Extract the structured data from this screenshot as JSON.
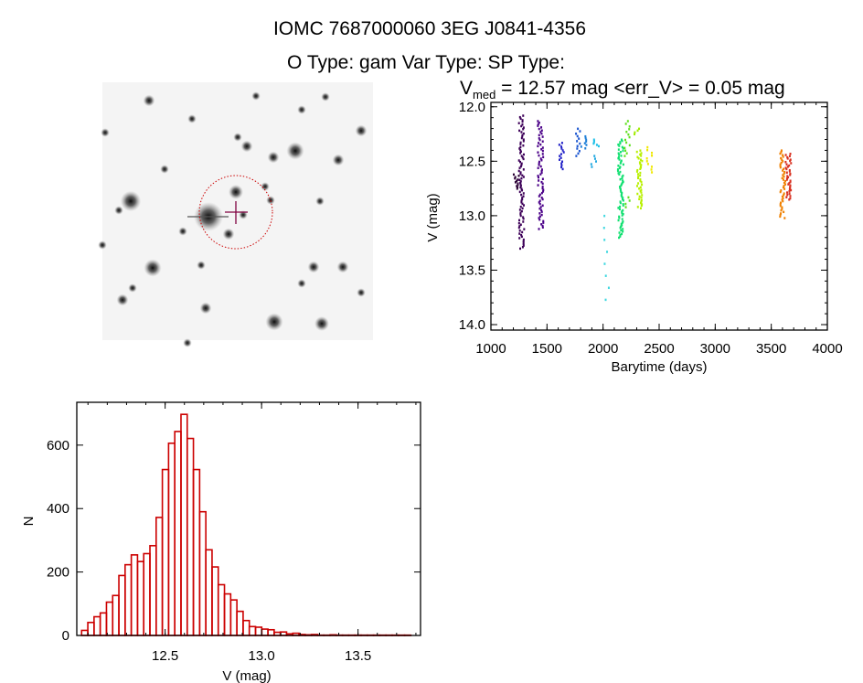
{
  "header": {
    "title_line1": "IOMC 7687000060    3EG J0841-4356",
    "title_line2": "O Type: gam  Var Type:   SP Type:"
  },
  "finder_image": {
    "label": "sky image cutout with source marker",
    "marker_color": "#800040",
    "circle_color": "#cc0000"
  },
  "chart_data": [
    {
      "type": "scatter",
      "title_prefix": "V",
      "title_subscript": "med",
      "title_rest": " = 12.57 mag <err_V> = 0.05 mag",
      "xlabel": "Barytime (days)",
      "ylabel": "V (mag)",
      "xlim": [
        1000,
        4000
      ],
      "ylim": [
        14.05,
        11.96
      ],
      "y_inverted": true,
      "xticks": [
        "1000",
        "1500",
        "2000",
        "2500",
        "3000",
        "3500",
        "4000"
      ],
      "yticks": [
        "12.0",
        "12.5",
        "13.0",
        "13.5",
        "14.0"
      ],
      "clusters": [
        {
          "x": 1228,
          "y_min": 12.62,
          "y_max": 12.75,
          "n": 12,
          "color": "#2a0035"
        },
        {
          "x": 1272,
          "y_min": 12.08,
          "y_max": 13.3,
          "n": 90,
          "color": "#3d0058"
        },
        {
          "x": 1443,
          "y_min": 12.13,
          "y_max": 13.12,
          "n": 70,
          "color": "#4a0088"
        },
        {
          "x": 1628,
          "y_min": 12.33,
          "y_max": 12.57,
          "n": 15,
          "color": "#2222c8"
        },
        {
          "x": 1782,
          "y_min": 12.2,
          "y_max": 12.45,
          "n": 12,
          "color": "#1a55d0"
        },
        {
          "x": 1829,
          "y_min": 12.27,
          "y_max": 12.38,
          "n": 8,
          "color": "#2080d8"
        },
        {
          "x": 1918,
          "y_min": 12.45,
          "y_max": 12.55,
          "n": 5,
          "color": "#20a8e0"
        },
        {
          "x": 1940,
          "y_min": 12.3,
          "y_max": 12.36,
          "n": 6,
          "color": "#20c0e8"
        },
        {
          "x": 2027,
          "y_min": 13.0,
          "y_max": 13.77,
          "n": 8,
          "color": "#40d8e0"
        },
        {
          "x": 2157,
          "y_min": 12.3,
          "y_max": 13.2,
          "n": 80,
          "color": "#10e070"
        },
        {
          "x": 2217,
          "y_min": 12.13,
          "y_max": 12.45,
          "n": 14,
          "color": "#60e020"
        },
        {
          "x": 2217,
          "y_min": 12.83,
          "y_max": 12.92,
          "n": 4,
          "color": "#60e020"
        },
        {
          "x": 2299,
          "y_min": 12.2,
          "y_max": 12.25,
          "n": 4,
          "color": "#a0ec00"
        },
        {
          "x": 2326,
          "y_min": 12.4,
          "y_max": 12.93,
          "n": 45,
          "color": "#b8f000"
        },
        {
          "x": 2413,
          "y_min": 12.37,
          "y_max": 12.6,
          "n": 10,
          "color": "#f0e800"
        },
        {
          "x": 3603,
          "y_min": 12.4,
          "y_max": 13.02,
          "n": 45,
          "color": "#f08000"
        },
        {
          "x": 3652,
          "y_min": 12.43,
          "y_max": 12.85,
          "n": 40,
          "color": "#d83020"
        }
      ]
    },
    {
      "type": "bar",
      "subtype": "histogram",
      "xlabel": "V (mag)",
      "ylabel": "N",
      "xlim": [
        12.042,
        13.824
      ],
      "ylim": [
        0,
        735
      ],
      "xticks": [
        "12.5",
        "13.0",
        "13.5"
      ],
      "yticks": [
        "0",
        "200",
        "400",
        "600"
      ],
      "bin_start": 12.067,
      "bin_width": 0.0322,
      "bar_color": "#cc0000",
      "values": [
        16,
        41,
        59,
        71,
        105,
        126,
        189,
        223,
        254,
        233,
        258,
        283,
        372,
        523,
        606,
        643,
        697,
        621,
        523,
        390,
        270,
        216,
        160,
        131,
        112,
        76,
        47,
        28,
        26,
        20,
        18,
        10,
        11,
        5,
        7,
        3,
        2,
        3,
        1,
        1,
        2,
        1,
        1,
        1,
        1,
        1,
        1,
        1,
        1,
        1,
        1,
        1,
        1
      ]
    }
  ]
}
